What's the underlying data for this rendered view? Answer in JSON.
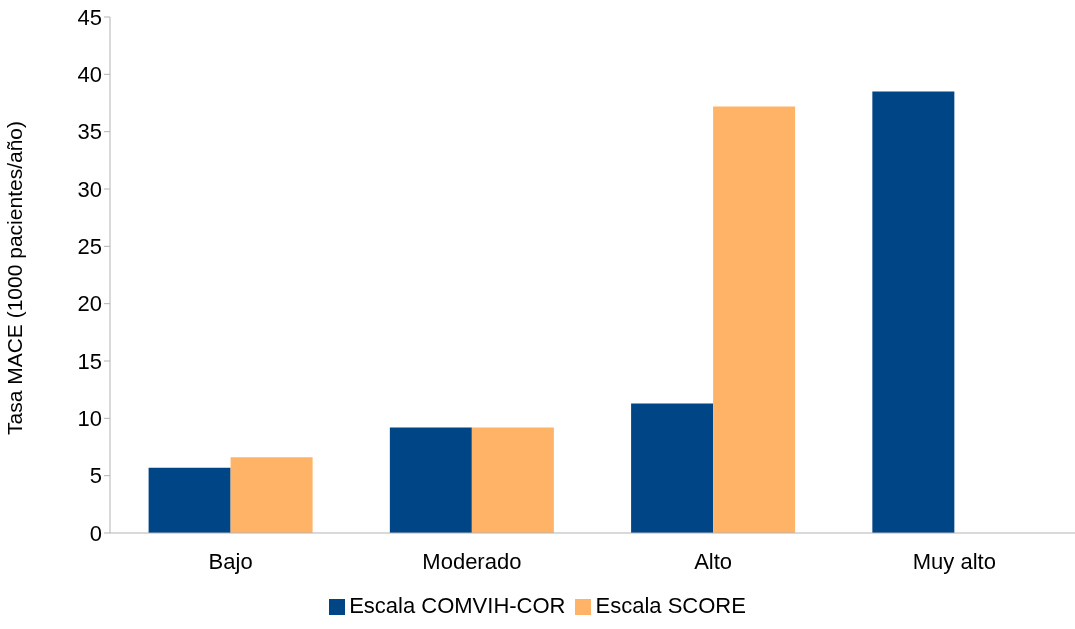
{
  "chart_data": {
    "type": "bar",
    "ylabel": "Tasa MACE (1000 pacientes/año)",
    "categories": [
      "Bajo",
      "Moderado",
      "Alto",
      "Muy alto"
    ],
    "series": [
      {
        "name": "Escala COMVIH-COR",
        "color": "#004586",
        "values": [
          5.7,
          9.2,
          11.3,
          38.5
        ]
      },
      {
        "name": "Escala SCORE",
        "color": "#ffb366",
        "values": [
          6.6,
          9.2,
          37.2,
          null
        ]
      }
    ],
    "ylim": [
      0,
      45
    ],
    "yticks": [
      0,
      5,
      10,
      15,
      20,
      25,
      30,
      35,
      40,
      45
    ],
    "grid": false,
    "legend": "bottom"
  }
}
